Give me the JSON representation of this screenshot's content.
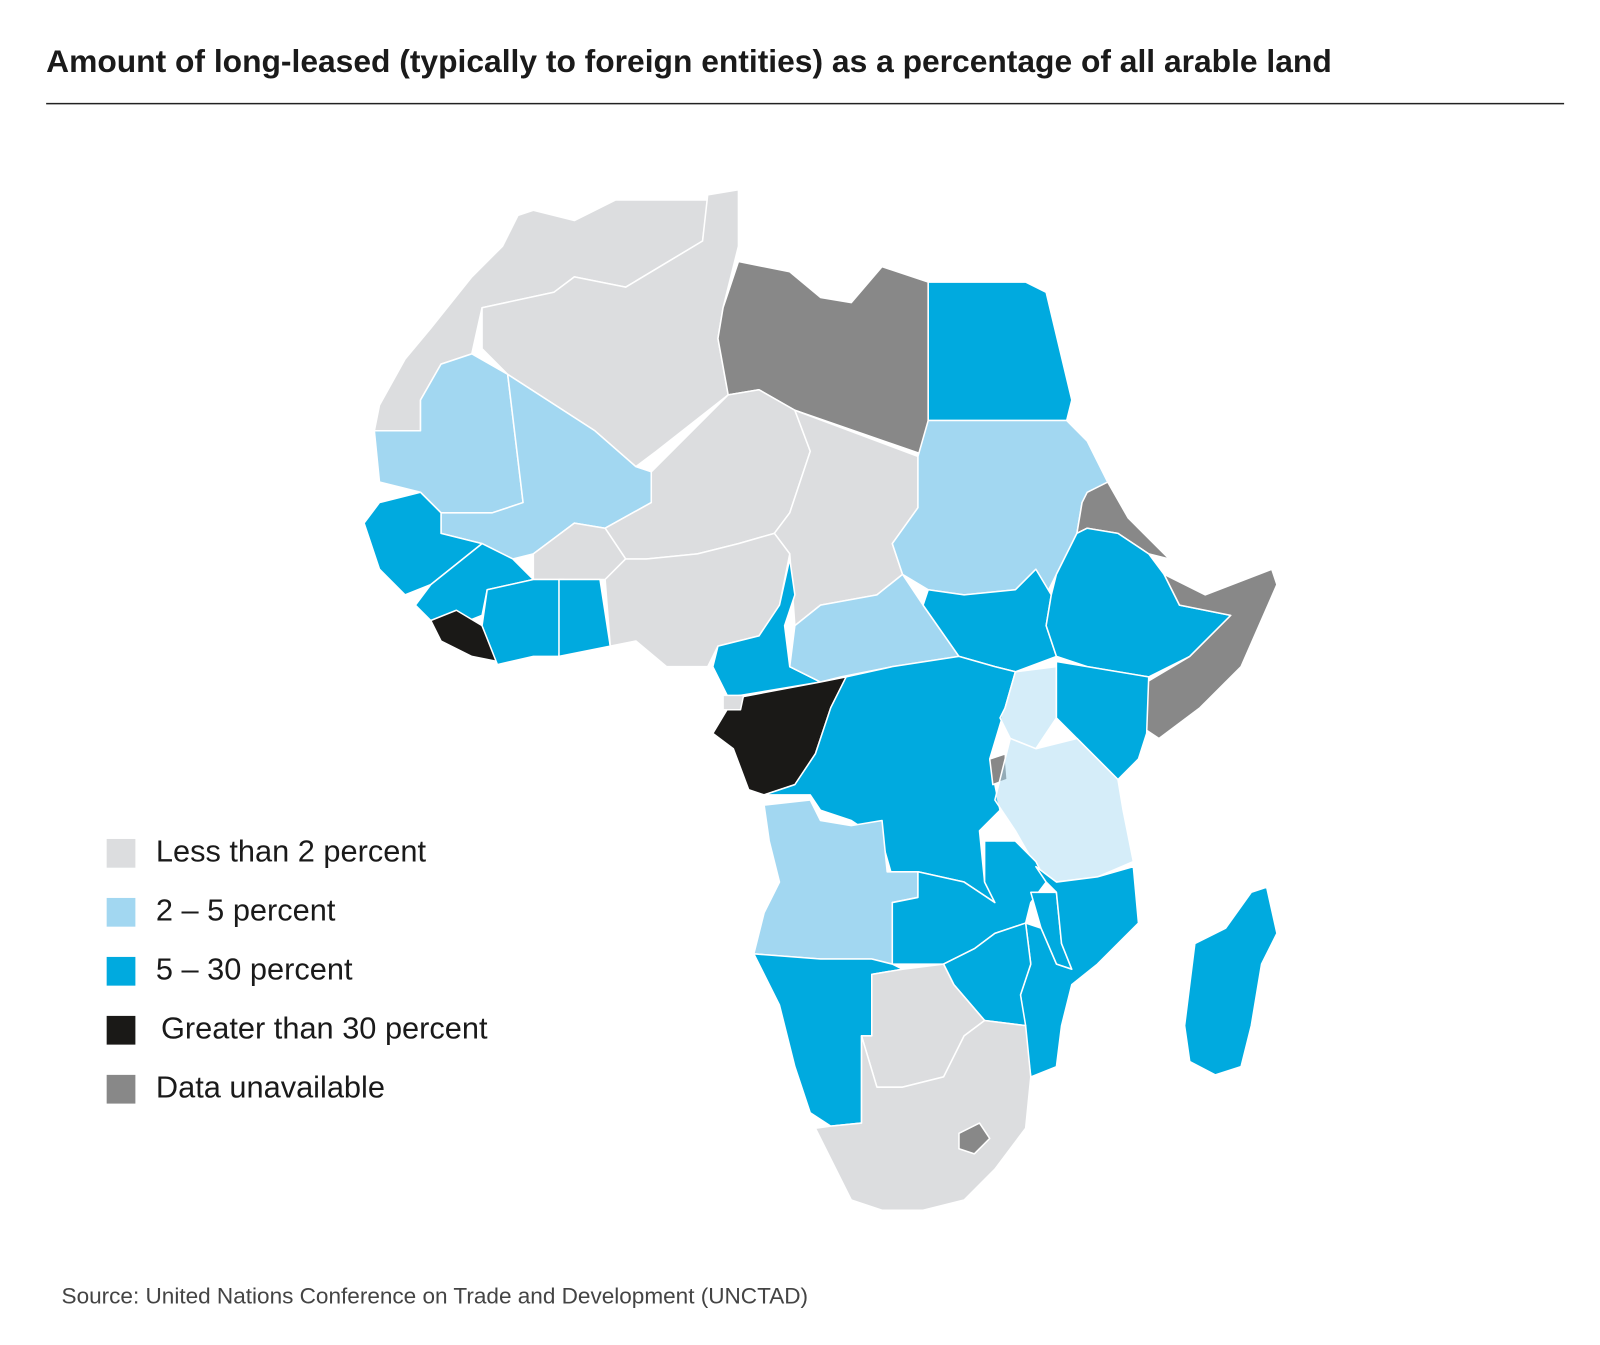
{
  "header": {
    "title": "Amount of long-leased (typically to foreign entities) as a percentage of all arable land"
  },
  "legend": {
    "items": [
      {
        "label": "Less than 2 percent",
        "color": "#dcdddf"
      },
      {
        "label": "2 – 5 percent",
        "color": "#a2d7f1"
      },
      {
        "label": "5 – 30 percent",
        "color": "#00aadf"
      },
      {
        "label": "Greater than 30 percent",
        "color": "#1a1917"
      },
      {
        "label": "Data unavailable",
        "color": "#888888"
      }
    ]
  },
  "source": "Source: United Nations Conference on Trade and Development (UNCTAD)"
}
